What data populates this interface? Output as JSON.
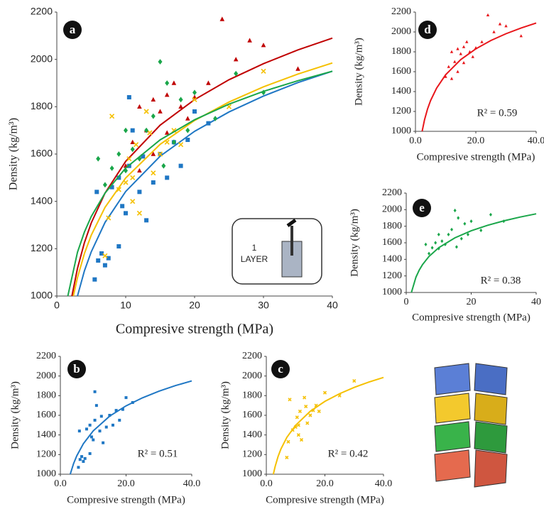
{
  "chart_data": [
    {
      "type": "scatter",
      "panel_label": "a",
      "xlabel": "Compresive strength (MPa)",
      "ylabel": "Density (kg/m³)",
      "xlim": [
        0,
        40
      ],
      "ylim": [
        1000,
        2200
      ],
      "xticks": [
        0,
        10,
        20,
        30,
        40
      ],
      "yticks": [
        1000,
        1200,
        1400,
        1600,
        1800,
        2000,
        2200
      ],
      "inset_text": [
        "1",
        "LAYER"
      ],
      "series": [
        {
          "color": "#1f77c4",
          "marker": "square",
          "x": [
            5.5,
            6,
            7,
            7.5,
            9,
            6.5,
            5.8,
            8,
            9.5,
            10,
            10.5,
            11,
            12,
            13,
            14,
            15,
            16,
            17,
            18,
            19,
            20,
            22,
            10.5,
            12.5,
            9
          ],
          "y": [
            1070,
            1150,
            1130,
            1160,
            1210,
            1180,
            1440,
            1460,
            1380,
            1350,
            1550,
            1700,
            1440,
            1320,
            1480,
            1600,
            1500,
            1650,
            1550,
            1660,
            1780,
            1730,
            1840,
            1590,
            1500
          ],
          "fit_x": [
            3,
            4,
            5,
            7,
            10,
            15,
            20,
            25,
            30,
            35,
            40
          ],
          "fit_y": [
            1000,
            1106,
            1187,
            1311,
            1442,
            1591,
            1696,
            1778,
            1845,
            1902,
            1950
          ]
        },
        {
          "color": "#c00000",
          "marker": "triangle",
          "x": [
            10,
            11,
            12,
            13,
            14,
            15,
            16,
            17,
            18,
            19,
            20,
            22,
            24,
            26,
            28,
            30,
            35,
            14,
            16,
            12
          ],
          "y": [
            1550,
            1650,
            1800,
            1700,
            1830,
            1780,
            1850,
            1900,
            1800,
            1750,
            1840,
            1900,
            2170,
            2000,
            2080,
            2060,
            1960,
            1600,
            1690,
            1530
          ],
          "fit_x": [
            2.2,
            3,
            4,
            5,
            7,
            10,
            15,
            20,
            25,
            30,
            35,
            40
          ],
          "fit_y": [
            1000,
            1117,
            1225,
            1309,
            1435,
            1569,
            1722,
            1830,
            1914,
            1982,
            2040,
            2090
          ]
        },
        {
          "color": "#f5c000",
          "marker": "cross",
          "x": [
            7,
            7.5,
            8,
            9,
            10,
            10.5,
            11,
            11.5,
            12,
            13,
            13.5,
            14,
            15,
            16,
            17,
            18,
            20,
            25,
            30,
            11
          ],
          "y": [
            1170,
            1330,
            1760,
            1450,
            1480,
            1580,
            1400,
            1640,
            1350,
            1780,
            1690,
            1520,
            1600,
            1650,
            1700,
            1640,
            1830,
            1800,
            1950,
            1500
          ],
          "fit_x": [
            2.4,
            3,
            4,
            5,
            7,
            10,
            15,
            20,
            25,
            30,
            35,
            40
          ],
          "fit_y": [
            1000,
            1078,
            1179,
            1257,
            1375,
            1499,
            1641,
            1742,
            1820,
            1884,
            1938,
            1985
          ]
        },
        {
          "color": "#1aa64a",
          "marker": "diamond",
          "x": [
            6,
            7,
            8,
            9,
            10,
            11,
            12,
            13,
            14,
            15,
            15.5,
            16,
            17,
            18,
            19,
            20,
            23,
            26,
            30,
            10
          ],
          "y": [
            1580,
            1470,
            1540,
            1600,
            1530,
            1620,
            1580,
            1700,
            1760,
            1990,
            1550,
            1900,
            1650,
            1830,
            1700,
            1860,
            1750,
            1940,
            1860,
            1700
          ],
          "fit_x": [
            1.6,
            3,
            4,
            5,
            7,
            10,
            15,
            20,
            25,
            30,
            35,
            40
          ],
          "fit_y": [
            1000,
            1185,
            1270,
            1336,
            1435,
            1541,
            1660,
            1745,
            1811,
            1865,
            1910,
            1950
          ]
        }
      ]
    },
    {
      "type": "scatter",
      "panel_label": "d",
      "xlabel": "Compresive strength (MPa)",
      "ylabel": "Density (kg/m³)",
      "annotation": "R² = 0.59",
      "xlim": [
        0,
        40
      ],
      "ylim": [
        1000,
        2200
      ],
      "xticks": [
        {
          "value": 0,
          "label": "0.0"
        },
        {
          "value": 20,
          "label": "20.0"
        },
        {
          "value": 40,
          "label": "40.0"
        }
      ],
      "yticks": [
        1000,
        1200,
        1400,
        1600,
        1800,
        2000,
        2200
      ],
      "series": [
        {
          "color": "#e8161b",
          "marker": "triangle",
          "x": [
            10,
            11,
            12,
            13,
            14,
            15,
            16,
            17,
            18,
            19,
            20,
            22,
            24,
            26,
            28,
            30,
            35,
            14,
            16,
            12
          ],
          "y": [
            1550,
            1650,
            1800,
            1700,
            1830,
            1780,
            1850,
            1900,
            1800,
            1750,
            1840,
            1900,
            2170,
            2000,
            2080,
            2060,
            1960,
            1600,
            1690,
            1530
          ],
          "fit_x": [
            2.2,
            3,
            4,
            5,
            7,
            10,
            15,
            20,
            25,
            30,
            35,
            40
          ],
          "fit_y": [
            1000,
            1117,
            1225,
            1309,
            1435,
            1569,
            1722,
            1830,
            1914,
            1982,
            2040,
            2090
          ]
        }
      ]
    },
    {
      "type": "scatter",
      "panel_label": "e",
      "xlabel": "Compresive strength (MPa)",
      "ylabel": "Density (kg/m³)",
      "annotation": "R² = 0.38",
      "xlim": [
        0,
        40
      ],
      "ylim": [
        1000,
        2200
      ],
      "xticks": [
        0,
        20,
        40
      ],
      "yticks": [
        1000,
        1200,
        1400,
        1600,
        1800,
        2000,
        2200
      ],
      "series": [
        {
          "color": "#1aa64a",
          "marker": "diamond",
          "x": [
            6,
            7,
            8,
            9,
            10,
            11,
            12,
            13,
            14,
            15,
            15.5,
            16,
            17,
            18,
            19,
            20,
            23,
            26,
            30,
            10
          ],
          "y": [
            1580,
            1470,
            1540,
            1600,
            1530,
            1620,
            1580,
            1700,
            1760,
            1990,
            1550,
            1900,
            1650,
            1830,
            1700,
            1860,
            1750,
            1940,
            1860,
            1700
          ],
          "fit_x": [
            1.6,
            3,
            4,
            5,
            7,
            10,
            15,
            20,
            25,
            30,
            35,
            40
          ],
          "fit_y": [
            1000,
            1185,
            1270,
            1336,
            1435,
            1541,
            1660,
            1745,
            1811,
            1865,
            1910,
            1950
          ]
        }
      ]
    },
    {
      "type": "scatter",
      "panel_label": "b",
      "xlabel": "Compresive strength (MPa)",
      "ylabel": "Density (kg/m³)",
      "annotation": "R² = 0.51",
      "xlim": [
        0,
        40
      ],
      "ylim": [
        1000,
        2200
      ],
      "xticks": [
        {
          "value": 0,
          "label": "0.0"
        },
        {
          "value": 20,
          "label": "20.0"
        },
        {
          "value": 40,
          "label": "40.0"
        }
      ],
      "yticks": [
        1000,
        1200,
        1400,
        1600,
        1800,
        2000,
        2200
      ],
      "series": [
        {
          "color": "#1f77c4",
          "marker": "square",
          "x": [
            5.5,
            6,
            7,
            7.5,
            9,
            6.5,
            5.8,
            8,
            9.5,
            10,
            10.5,
            11,
            12,
            13,
            14,
            15,
            16,
            17,
            18,
            19,
            20,
            22,
            10.5,
            12.5,
            9
          ],
          "y": [
            1070,
            1150,
            1130,
            1160,
            1210,
            1180,
            1440,
            1460,
            1380,
            1350,
            1550,
            1700,
            1440,
            1320,
            1480,
            1600,
            1500,
            1650,
            1550,
            1660,
            1780,
            1730,
            1840,
            1590,
            1500
          ],
          "fit_x": [
            3,
            4,
            5,
            7,
            10,
            15,
            20,
            25,
            30,
            35,
            40
          ],
          "fit_y": [
            1000,
            1106,
            1187,
            1311,
            1442,
            1591,
            1696,
            1778,
            1845,
            1902,
            1950
          ]
        }
      ]
    },
    {
      "type": "scatter",
      "panel_label": "c",
      "xlabel": "Compresive strength (MPa)",
      "ylabel": "Density (kg/m³)",
      "annotation": "R² = 0.42",
      "xlim": [
        0,
        40
      ],
      "ylim": [
        1000,
        2200
      ],
      "xticks": [
        {
          "value": 0,
          "label": "0.0"
        },
        {
          "value": 20,
          "label": "20.0"
        },
        {
          "value": 40,
          "label": "40.0"
        }
      ],
      "yticks": [
        1000,
        1200,
        1400,
        1600,
        1800,
        2000,
        2200
      ],
      "series": [
        {
          "color": "#f5c000",
          "marker": "cross",
          "x": [
            7,
            7.5,
            8,
            9,
            10,
            10.5,
            11,
            11.5,
            12,
            13,
            13.5,
            14,
            15,
            16,
            17,
            18,
            20,
            25,
            30,
            11
          ],
          "y": [
            1170,
            1330,
            1760,
            1450,
            1480,
            1580,
            1400,
            1640,
            1350,
            1780,
            1690,
            1520,
            1600,
            1650,
            1700,
            1640,
            1830,
            1800,
            1950,
            1500
          ],
          "fit_x": [
            2.4,
            3,
            4,
            5,
            7,
            10,
            15,
            20,
            25,
            30,
            35,
            40
          ],
          "fit_y": [
            1000,
            1078,
            1179,
            1257,
            1375,
            1499,
            1641,
            1742,
            1820,
            1884,
            1938,
            1985
          ]
        }
      ]
    }
  ]
}
